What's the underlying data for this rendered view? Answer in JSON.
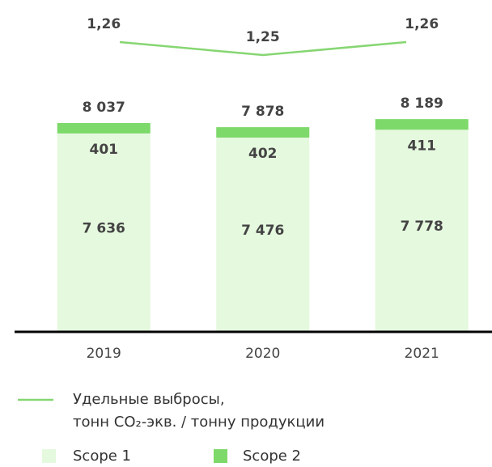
{
  "chart_data": {
    "type": "stacked-bar-line",
    "categories": [
      "2019",
      "2020",
      "2021"
    ],
    "series": [
      {
        "name": "Scope 1",
        "color": "#e5f9de",
        "values": [
          7636,
          7476,
          7778
        ],
        "value_labels": [
          "7 636",
          "7 476",
          "7 778"
        ]
      },
      {
        "name": "Scope 2",
        "color": "#7dd96a",
        "values": [
          401,
          402,
          411
        ]
      },
      {
        "name": "Удельные выбросы,\nтонн CO₂-экв. / тонну продукции",
        "color": "#86d672",
        "type": "line",
        "axis": "y2",
        "values": [
          1.26,
          1.25,
          1.26
        ],
        "value_labels": [
          "1,26",
          "1,25",
          "1,26"
        ]
      }
    ],
    "totals": {
      "values": [
        8037,
        7878,
        8189
      ],
      "value_labels": [
        "8 037",
        "7 878",
        "8 189"
      ]
    },
    "ylim": [
      0,
      10000
    ],
    "y2lim": [
      1.24,
      1.27
    ]
  }
}
